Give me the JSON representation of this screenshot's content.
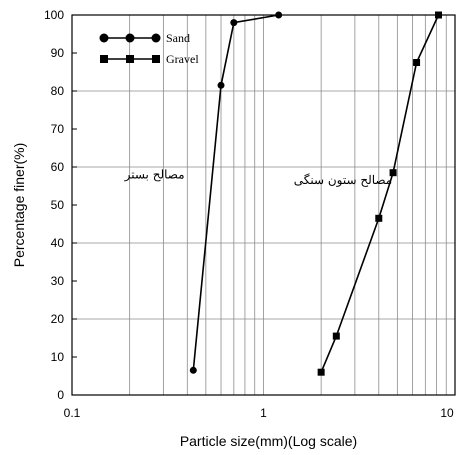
{
  "chart_data": {
    "type": "line",
    "xlabel": "Particle size(mm)(Log scale)",
    "ylabel": "Percentage finer(%)",
    "x_scale": "log",
    "xlim": [
      0.1,
      10
    ],
    "ylim": [
      0,
      100
    ],
    "x_ticks": [
      "0.1",
      "1",
      "10"
    ],
    "y_ticks": [
      "0",
      "10",
      "20",
      "30",
      "40",
      "50",
      "60",
      "70",
      "80",
      "90",
      "100"
    ],
    "grid": true,
    "legend_position": "top-left",
    "series": [
      {
        "name": "Sand",
        "marker": "circle",
        "color": "#000000",
        "points": [
          {
            "x": 0.43,
            "y": 6.5
          },
          {
            "x": 0.6,
            "y": 81.5
          },
          {
            "x": 0.7,
            "y": 98
          },
          {
            "x": 1.2,
            "y": 100
          }
        ]
      },
      {
        "name": "Gravel",
        "marker": "square",
        "color": "#000000",
        "points": [
          {
            "x": 2.0,
            "y": 6
          },
          {
            "x": 2.4,
            "y": 15.5
          },
          {
            "x": 4.0,
            "y": 46.5
          },
          {
            "x": 4.75,
            "y": 58.5
          },
          {
            "x": 6.3,
            "y": 87.5
          },
          {
            "x": 8.2,
            "y": 100
          }
        ]
      }
    ],
    "annotations": [
      {
        "text": "مصالح بستر",
        "x": 0.27,
        "y": 57
      },
      {
        "text": "مصالح ستون سنگی",
        "x": 2.6,
        "y": 55.5
      }
    ]
  }
}
